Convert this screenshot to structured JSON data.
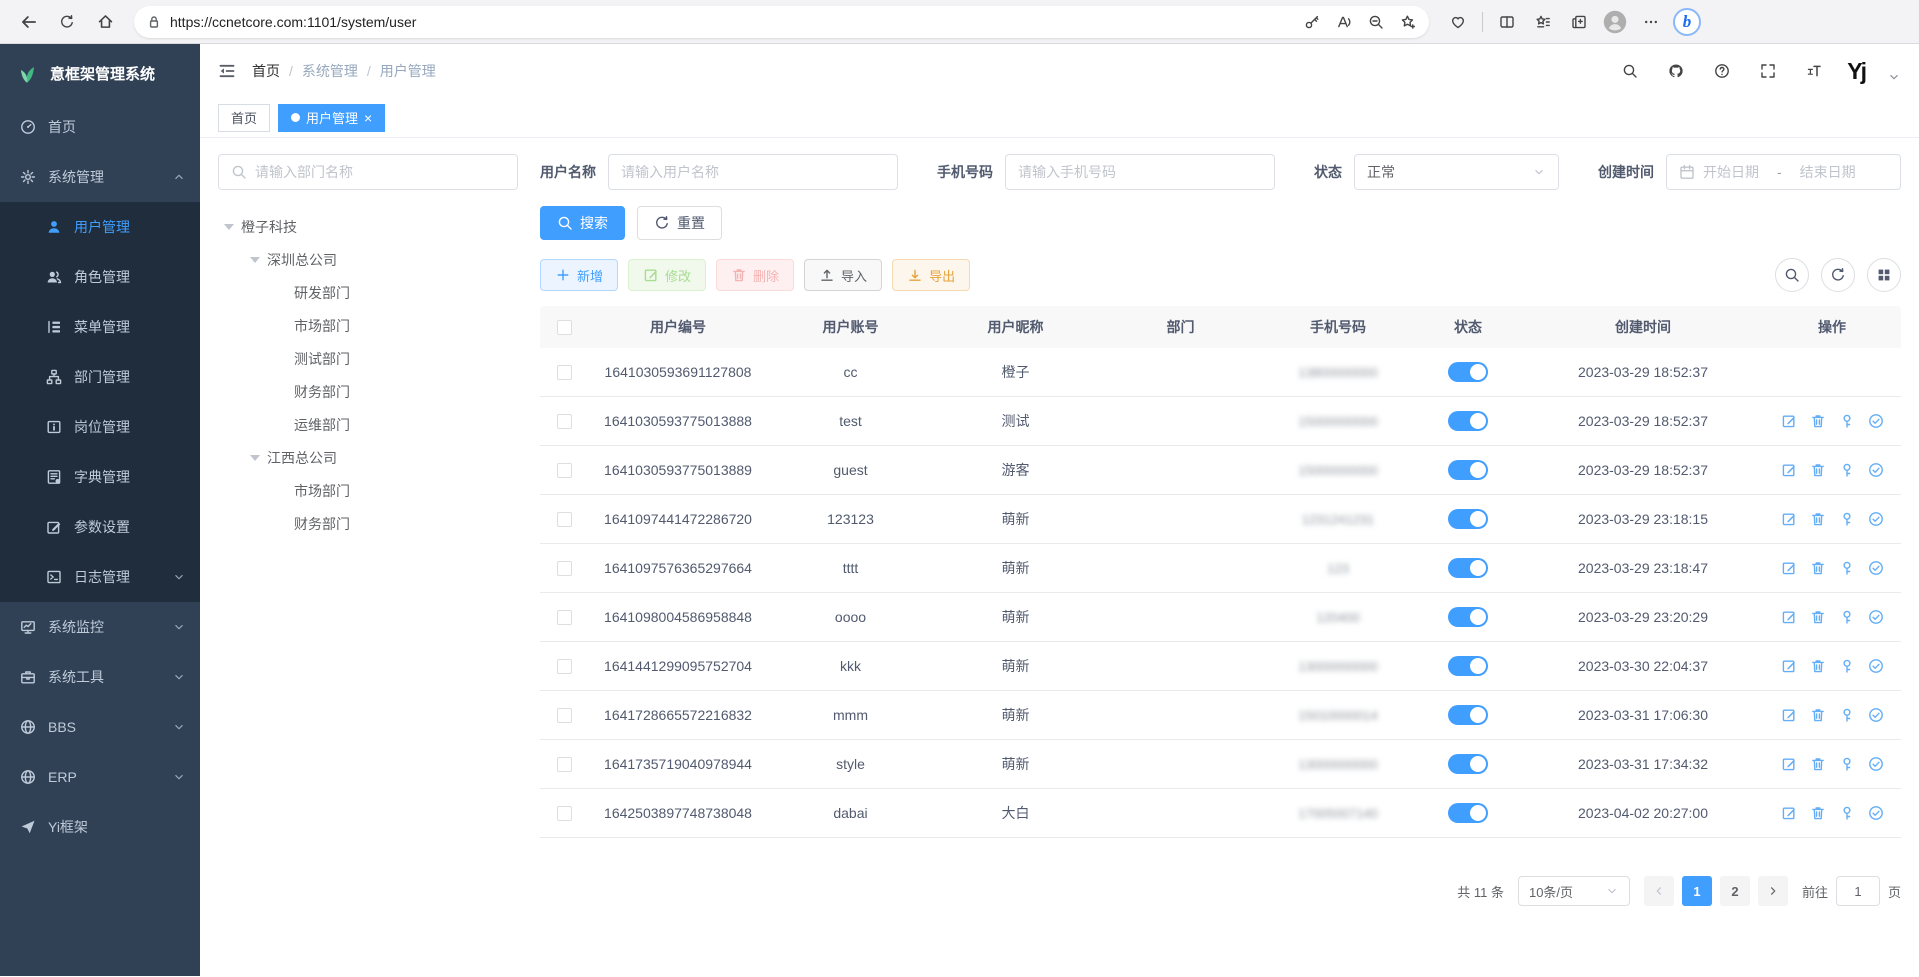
{
  "browser": {
    "url": "https://ccnetcore.com:1101/system/user",
    "bing_glyph": "b"
  },
  "sidebar": {
    "logo": "意框架管理系统",
    "items": [
      {
        "label": "首页",
        "icon": "dashboard"
      },
      {
        "label": "系统管理",
        "icon": "gear",
        "arrow": "up",
        "children": [
          {
            "label": "用户管理",
            "icon": "user",
            "active": true
          },
          {
            "label": "角色管理",
            "icon": "users"
          },
          {
            "label": "菜单管理",
            "icon": "menu"
          },
          {
            "label": "部门管理",
            "icon": "dept"
          },
          {
            "label": "岗位管理",
            "icon": "post"
          },
          {
            "label": "字典管理",
            "icon": "dict"
          },
          {
            "label": "参数设置",
            "icon": "editp"
          },
          {
            "label": "日志管理",
            "icon": "logp",
            "arrow": "down"
          }
        ]
      },
      {
        "label": "系统监控",
        "icon": "monitor",
        "arrow": "down"
      },
      {
        "label": "系统工具",
        "icon": "tool",
        "arrow": "down"
      },
      {
        "label": "BBS",
        "icon": "globe",
        "arrow": "down"
      },
      {
        "label": "ERP",
        "icon": "globe",
        "arrow": "down"
      },
      {
        "label": "Yi框架",
        "icon": "plane"
      }
    ]
  },
  "navbar": {
    "breadcrumb": [
      "首页",
      "系统管理",
      "用户管理"
    ],
    "breadcrumb_sep": "/",
    "logo_badge": "Yj"
  },
  "tabs": [
    {
      "label": "首页",
      "active": false
    },
    {
      "label": "用户管理",
      "active": true,
      "closable": true
    }
  ],
  "tabs_close": "×",
  "filters": {
    "dept_placeholder": "请输入部门名称",
    "username_label": "用户名称",
    "username_placeholder": "请输入用户名称",
    "phone_label": "手机号码",
    "phone_placeholder": "请输入手机号码",
    "status_label": "状态",
    "status_value": "正常",
    "created_label": "创建时间",
    "date_start": "开始日期",
    "date_sep": "-",
    "date_end": "结束日期",
    "search": "搜索",
    "reset": "重置"
  },
  "tree": [
    {
      "label": "橙子科技",
      "level": 0,
      "parent": true
    },
    {
      "label": "深圳总公司",
      "level": 1,
      "parent": true
    },
    {
      "label": "研发部门",
      "level": 2
    },
    {
      "label": "市场部门",
      "level": 2
    },
    {
      "label": "测试部门",
      "level": 2
    },
    {
      "label": "财务部门",
      "level": 2
    },
    {
      "label": "运维部门",
      "level": 2
    },
    {
      "label": "江西总公司",
      "level": 1,
      "parent": true
    },
    {
      "label": "市场部门",
      "level": 2
    },
    {
      "label": "财务部门",
      "level": 2
    }
  ],
  "toolbar": {
    "add": "新增",
    "edit": "修改",
    "delete": "删除",
    "import": "导入",
    "export": "导出"
  },
  "table": {
    "headers": [
      "用户编号",
      "用户账号",
      "用户昵称",
      "部门",
      "手机号码",
      "状态",
      "创建时间",
      "操作"
    ],
    "rows": [
      {
        "id": "1641030593691127808",
        "account": "cc",
        "nickname": "橙子",
        "dept": "",
        "phone": "13800000000",
        "status": "on",
        "created": "2023-03-29 18:52:37",
        "actions": false
      },
      {
        "id": "1641030593775013888",
        "account": "test",
        "nickname": "测试",
        "dept": "",
        "phone": "15000000000",
        "status": "on",
        "created": "2023-03-29 18:52:37",
        "actions": true
      },
      {
        "id": "1641030593775013889",
        "account": "guest",
        "nickname": "游客",
        "dept": "",
        "phone": "15000000000",
        "status": "on",
        "created": "2023-03-29 18:52:37",
        "actions": true
      },
      {
        "id": "1641097441472286720",
        "account": "123123",
        "nickname": "萌新",
        "dept": "",
        "phone": "1231241231",
        "status": "on",
        "created": "2023-03-29 23:18:15",
        "actions": true
      },
      {
        "id": "1641097576365297664",
        "account": "tttt",
        "nickname": "萌新",
        "dept": "",
        "phone": "123",
        "status": "on",
        "created": "2023-03-29 23:18:47",
        "actions": true
      },
      {
        "id": "1641098004586958848",
        "account": "oooo",
        "nickname": "萌新",
        "dept": "",
        "phone": "120400",
        "status": "on",
        "created": "2023-03-29 23:20:29",
        "actions": true
      },
      {
        "id": "1641441299095752704",
        "account": "kkk",
        "nickname": "萌新",
        "dept": "",
        "phone": "13000000000",
        "status": "on",
        "created": "2023-03-30 22:04:37",
        "actions": true
      },
      {
        "id": "1641728665572216832",
        "account": "mmm",
        "nickname": "萌新",
        "dept": "",
        "phone": "15010000014",
        "status": "on",
        "created": "2023-03-31 17:06:30",
        "actions": true
      },
      {
        "id": "1641735719040978944",
        "account": "style",
        "nickname": "萌新",
        "dept": "",
        "phone": "13000000000",
        "status": "on",
        "created": "2023-03-31 17:34:32",
        "actions": true
      },
      {
        "id": "1642503897748738048",
        "account": "dabai",
        "nickname": "大白",
        "dept": "",
        "phone": "17005007140",
        "status": "on",
        "created": "2023-04-02 20:27:00",
        "actions": true
      }
    ]
  },
  "pagination": {
    "total": "共 11 条",
    "size": "10条/页",
    "pages": [
      "1",
      "2"
    ],
    "active": "1",
    "goto_label": "前往",
    "goto_value": "1",
    "unit": "页"
  },
  "colors": {
    "primary": "#409eff",
    "sidebar_bg": "#304156",
    "submenu_bg": "#1f2d3d",
    "toggle_on": "#409eff"
  }
}
